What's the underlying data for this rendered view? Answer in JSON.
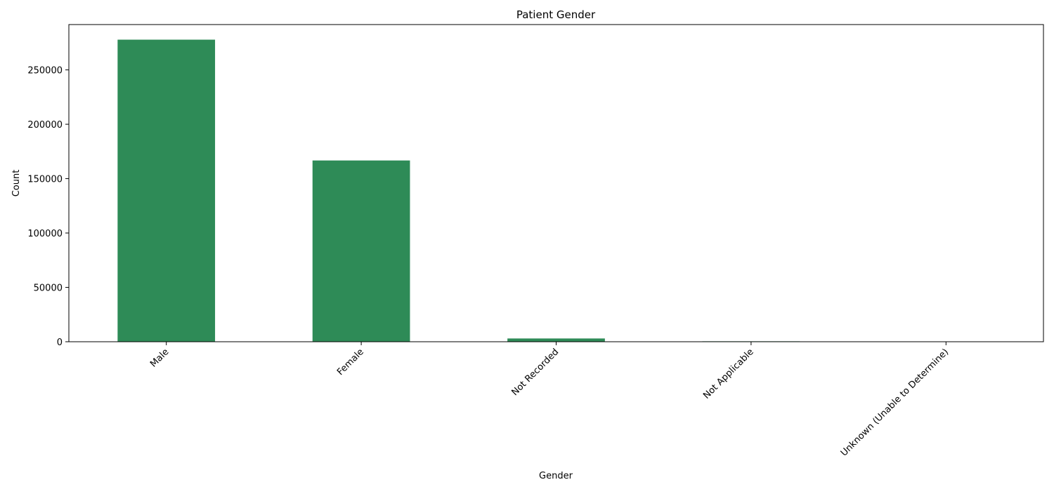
{
  "chart_data": {
    "type": "bar",
    "title": "Patient Gender",
    "xlabel": "Gender",
    "ylabel": "Count",
    "categories": [
      "Male",
      "Female",
      "Not Recorded",
      "Not Applicable",
      "Unknown (Unable to Determine)"
    ],
    "values": [
      277800,
      166700,
      3000,
      400,
      300
    ],
    "ylim": [
      0,
      291690
    ],
    "yticks": [
      0,
      50000,
      100000,
      150000,
      200000,
      250000
    ],
    "ytick_labels": [
      "0",
      "50000",
      "100000",
      "150000",
      "200000",
      "250000"
    ],
    "bar_color": "#2e8b57",
    "grid": false,
    "legend": "none",
    "xtick_rotation": 45
  }
}
